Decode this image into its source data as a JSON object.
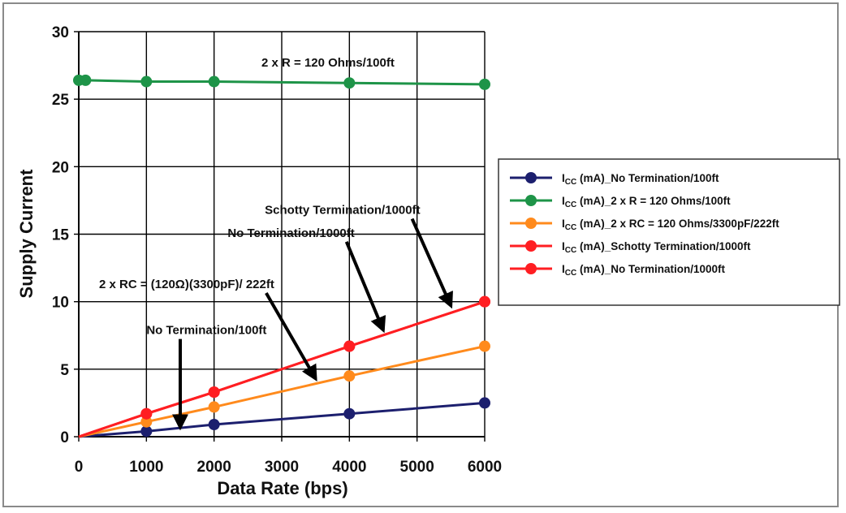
{
  "chart_data": {
    "type": "line",
    "xlabel": "Data Rate (bps)",
    "ylabel": "Supply Current",
    "xlim": [
      0,
      6000
    ],
    "ylim": [
      0,
      30
    ],
    "xticks": [
      0,
      1000,
      2000,
      3000,
      4000,
      5000,
      6000
    ],
    "yticks": [
      0,
      5,
      10,
      15,
      20,
      25,
      30
    ],
    "xtick_labels": [
      "0",
      "1000",
      "2000",
      "3000",
      "4000",
      "5000",
      "6000"
    ],
    "ytick_labels": [
      "0",
      "5",
      "10",
      "15",
      "20",
      "25",
      "30"
    ],
    "grid": true,
    "legend_position": "right",
    "series": [
      {
        "name": "I_CC (mA)_No Termination/100ft",
        "legend": {
          "main": "I",
          "sub": "CC",
          "rest": " (mA)_No Termination/100ft"
        },
        "color": "#1c1f6e",
        "x": [
          0,
          1000,
          2000,
          4000,
          6000
        ],
        "y": [
          0,
          0.4,
          0.9,
          1.7,
          2.5
        ],
        "markers": [
          false,
          true,
          true,
          true,
          true
        ]
      },
      {
        "name": "I_CC (mA)_2 x R = 120 Ohms/100ft",
        "legend": {
          "main": "I",
          "sub": "CC",
          "rest": " (mA)_2 x R = 120 Ohms/100ft"
        },
        "color": "#1e9448",
        "x": [
          0,
          100,
          1000,
          2000,
          4000,
          6000
        ],
        "y": [
          26.4,
          26.4,
          26.3,
          26.3,
          26.2,
          26.1
        ],
        "markers": [
          true,
          true,
          true,
          true,
          true,
          true
        ]
      },
      {
        "name": "I_CC (mA)_2 x RC = 120 Ohms/3300pF/222ft",
        "legend": {
          "main": "I",
          "sub": "CC",
          "rest": " (mA)_2 x RC = 120 Ohms/3300pF/222ft"
        },
        "color": "#ff8a1c",
        "x": [
          0,
          1000,
          2000,
          4000,
          6000
        ],
        "y": [
          0,
          1.1,
          2.2,
          4.5,
          6.7
        ],
        "markers": [
          false,
          true,
          true,
          true,
          true
        ]
      },
      {
        "name": "I_CC (mA)_Schotty Termination/1000ft",
        "legend": {
          "main": "I",
          "sub": "CC",
          "rest": " (mA)_Schotty Termination/1000ft"
        },
        "color": "#ff1e22",
        "x": [
          0,
          1000,
          2000,
          4000,
          6000
        ],
        "y": [
          0,
          1.7,
          3.3,
          6.7,
          10.0
        ],
        "markers": [
          false,
          true,
          true,
          true,
          true
        ]
      },
      {
        "name": "I_CC (mA)_No Termination/1000ft",
        "legend": {
          "main": "I",
          "sub": "CC",
          "rest": " (mA)_No Termination/1000ft"
        },
        "color": "#ff1e22",
        "x": [
          0,
          1000,
          2000,
          4000,
          6000
        ],
        "y": [
          0,
          1.7,
          3.3,
          6.7,
          10.0
        ],
        "markers": [
          false,
          true,
          true,
          true,
          true
        ]
      }
    ],
    "annotations": [
      {
        "text": "2 x R = 120 Ohms/100ft",
        "x": 2700,
        "y": 27.4
      },
      {
        "text": "Schotty Termination/1000ft",
        "x": 2750,
        "y": 16.5,
        "arrow_to": [
          5500,
          9.7
        ]
      },
      {
        "text": "No Termination/1000ft",
        "x": 2200,
        "y": 14.8,
        "arrow_to": [
          4500,
          7.9
        ]
      },
      {
        "text": "2 x RC = (120Ω)(3300pF)/ 222ft",
        "x": 300,
        "y": 11.0,
        "arrow_to": [
          3500,
          4.3
        ]
      },
      {
        "text": "No Termination/100ft",
        "x": 1000,
        "y": 7.6,
        "arrow_to": [
          1500,
          0.7
        ]
      }
    ]
  }
}
